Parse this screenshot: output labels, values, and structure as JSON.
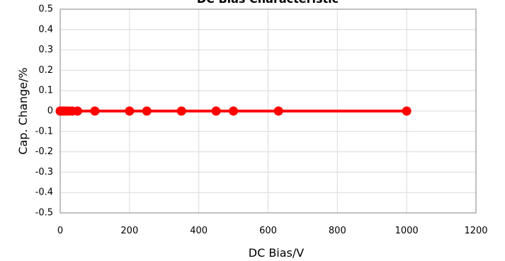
{
  "chart_data": {
    "type": "line",
    "title": "DC Bias Characteristic",
    "xlabel": "DC Bias/V",
    "ylabel": "Cap. Change/%",
    "xlim": [
      0,
      1200
    ],
    "ylim": [
      -0.5,
      0.5
    ],
    "x_ticks": [
      "0",
      "200",
      "400",
      "600",
      "800",
      "1000",
      "1200"
    ],
    "y_ticks": [
      "0.5",
      "0.4",
      "0.3",
      "0.2",
      "0.1",
      "0",
      "-0.1",
      "-0.2",
      "-0.3",
      "-0.4",
      "-0.5"
    ],
    "grid": true,
    "series": [
      {
        "color": "#ff0000",
        "marker": "circle",
        "x": [
          0,
          5,
          10,
          16,
          25,
          35,
          50,
          100,
          200,
          250,
          350,
          450,
          500,
          630,
          1000
        ],
        "y": [
          0,
          0,
          0,
          0,
          0,
          0,
          0,
          0,
          0,
          0,
          0,
          0,
          0,
          0,
          0
        ]
      }
    ]
  }
}
